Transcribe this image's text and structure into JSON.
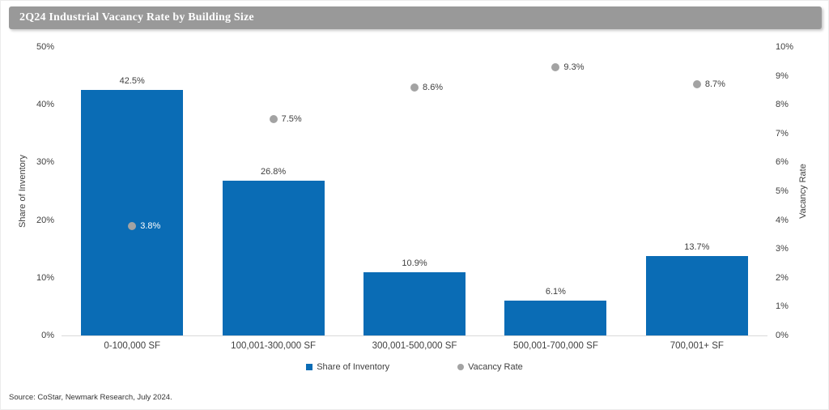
{
  "title": "2Q24 Industrial Vacancy Rate by Building Size",
  "source": "Source: CoStar, Newmark Research, July 2024.",
  "colors": {
    "title_bg": "#999999",
    "bar": "#0a6cb5",
    "dot": "#a3a3a3",
    "on_bar_label": "#ffffff",
    "axis_line": "#d9d9d9",
    "text": "#404040"
  },
  "chart_data": {
    "type": "bar",
    "subtype": "combo-bar-scatter-dual-axis",
    "title": "2Q24 Industrial Vacancy Rate by Building Size",
    "categories": [
      "0-100,000 SF",
      "100,001-300,000 SF",
      "300,001-500,000 SF",
      "500,001-700,000 SF",
      "700,001+ SF"
    ],
    "series": [
      {
        "name": "Share of Inventory",
        "type": "bar",
        "axis": "left",
        "values": [
          42.5,
          26.8,
          10.9,
          6.1,
          13.7
        ],
        "labels": [
          "42.5%",
          "26.8%",
          "10.9%",
          "6.1%",
          "13.7%"
        ]
      },
      {
        "name": "Vacancy Rate",
        "type": "scatter",
        "axis": "right",
        "values": [
          3.8,
          7.5,
          8.6,
          9.3,
          8.7
        ],
        "labels": [
          "3.8%",
          "7.5%",
          "8.6%",
          "9.3%",
          "8.7%"
        ]
      }
    ],
    "left_axis": {
      "label": "Share of Inventory",
      "min": 0,
      "max": 50,
      "step": 10,
      "unit": "%"
    },
    "right_axis": {
      "label": "Vacancy Rate",
      "min": 0,
      "max": 10,
      "step": 1,
      "unit": "%"
    },
    "grid": "off",
    "legend_position": "bottom"
  }
}
